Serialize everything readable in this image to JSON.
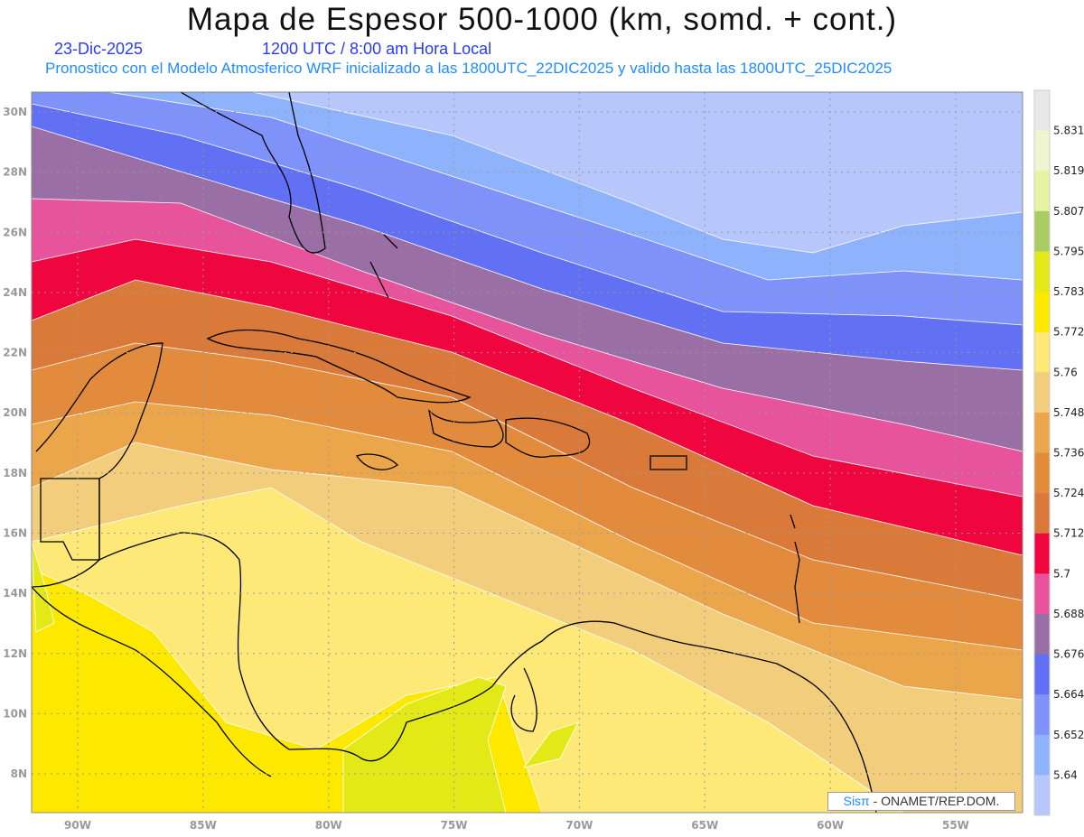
{
  "header": {
    "title": "Mapa de Espesor 500-1000 (km, somd. + cont.)",
    "date": "23-Dic-2025",
    "time": "1200 UTC / 8:00 am Hora Local",
    "subtitle": "Pronostico con el Modelo Atmosferico WRF inicializado a las 1800UTC_22DIC2025 y valido hasta las  1800UTC_25DIC2025"
  },
  "map": {
    "lon_ticks": [
      "90W",
      "85W",
      "80W",
      "75W",
      "70W",
      "65W",
      "60W",
      "55W"
    ],
    "lat_ticks": [
      "30N",
      "28N",
      "26N",
      "24N",
      "22N",
      "20N",
      "18N",
      "16N",
      "14N",
      "12N",
      "10N",
      "8N"
    ]
  },
  "colorbar": {
    "labels": [
      "5.831",
      "5.819",
      "5.807",
      "5.795",
      "5.783",
      "5.772",
      "5.76",
      "5.748",
      "5.736",
      "5.724",
      "5.712",
      "5.7",
      "5.688",
      "5.676",
      "5.664",
      "5.652",
      "5.64"
    ],
    "colors": [
      "#e8e8e8",
      "#eef5d0",
      "#e6f3a0",
      "#a9cc64",
      "#e2e916",
      "#fde800",
      "#fde878",
      "#f2cd7c",
      "#eba54a",
      "#e28b3c",
      "#d97a3b",
      "#ef063f",
      "#e8549b",
      "#9a6fa6",
      "#6270f4",
      "#7f92fa",
      "#8eb2fb",
      "#b7c6fb"
    ]
  },
  "credit": {
    "brand": "Sisπ",
    "text": " - ONAMET/REP.DOM."
  }
}
